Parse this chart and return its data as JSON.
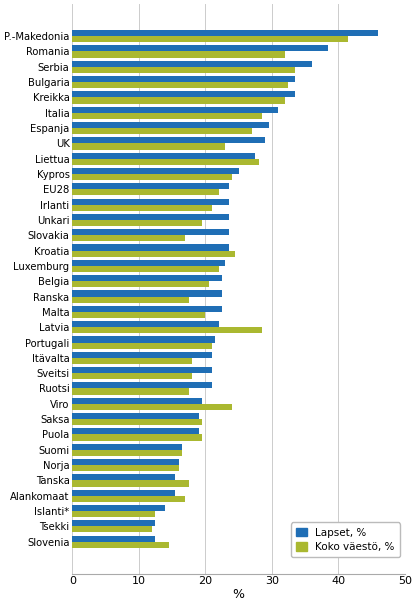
{
  "countries": [
    "P.-Makedonia",
    "Romania",
    "Serbia",
    "Bulgaria",
    "Kreikka",
    "Italia",
    "Espanja",
    "UK",
    "Liettua",
    "Kypros",
    "EU28",
    "Irlanti",
    "Unkari",
    "Slovakia",
    "Kroatia",
    "Luxemburg",
    "Belgia",
    "Ranska",
    "Malta",
    "Latvia",
    "Portugali",
    "Itävalta",
    "Sveitsi",
    "Ruotsi",
    "Viro",
    "Saksa",
    "Puola",
    "Suomi",
    "Norja",
    "Tanska",
    "Alankomaat",
    "Islanti*",
    "Tsekki",
    "Slovenia"
  ],
  "lapset": [
    46.0,
    38.5,
    36.0,
    33.5,
    33.5,
    31.0,
    29.5,
    29.0,
    27.5,
    25.0,
    23.5,
    23.5,
    23.5,
    23.5,
    23.5,
    23.0,
    22.5,
    22.5,
    22.5,
    22.0,
    21.5,
    21.0,
    21.0,
    21.0,
    19.5,
    19.0,
    19.0,
    16.5,
    16.0,
    15.5,
    15.5,
    14.0,
    12.5,
    12.5
  ],
  "koko_vaesto": [
    41.5,
    32.0,
    33.5,
    32.5,
    32.0,
    28.5,
    27.0,
    23.0,
    28.0,
    24.0,
    22.0,
    21.0,
    19.5,
    17.0,
    24.5,
    22.0,
    20.5,
    17.5,
    20.0,
    28.5,
    21.0,
    18.0,
    18.0,
    17.5,
    24.0,
    19.5,
    19.5,
    16.5,
    16.0,
    17.5,
    17.0,
    12.5,
    12.0,
    14.5
  ],
  "color_lapset": "#1f6eb5",
  "color_koko": "#aab830",
  "xlabel": "%",
  "legend_lapset": "Lapset, %",
  "legend_koko": "Koko väestö, %",
  "xlim": [
    0,
    50
  ],
  "xticks": [
    0,
    10,
    20,
    30,
    40,
    50
  ],
  "bar_height": 0.4,
  "background_color": "#ffffff",
  "grid_color": "#cccccc"
}
